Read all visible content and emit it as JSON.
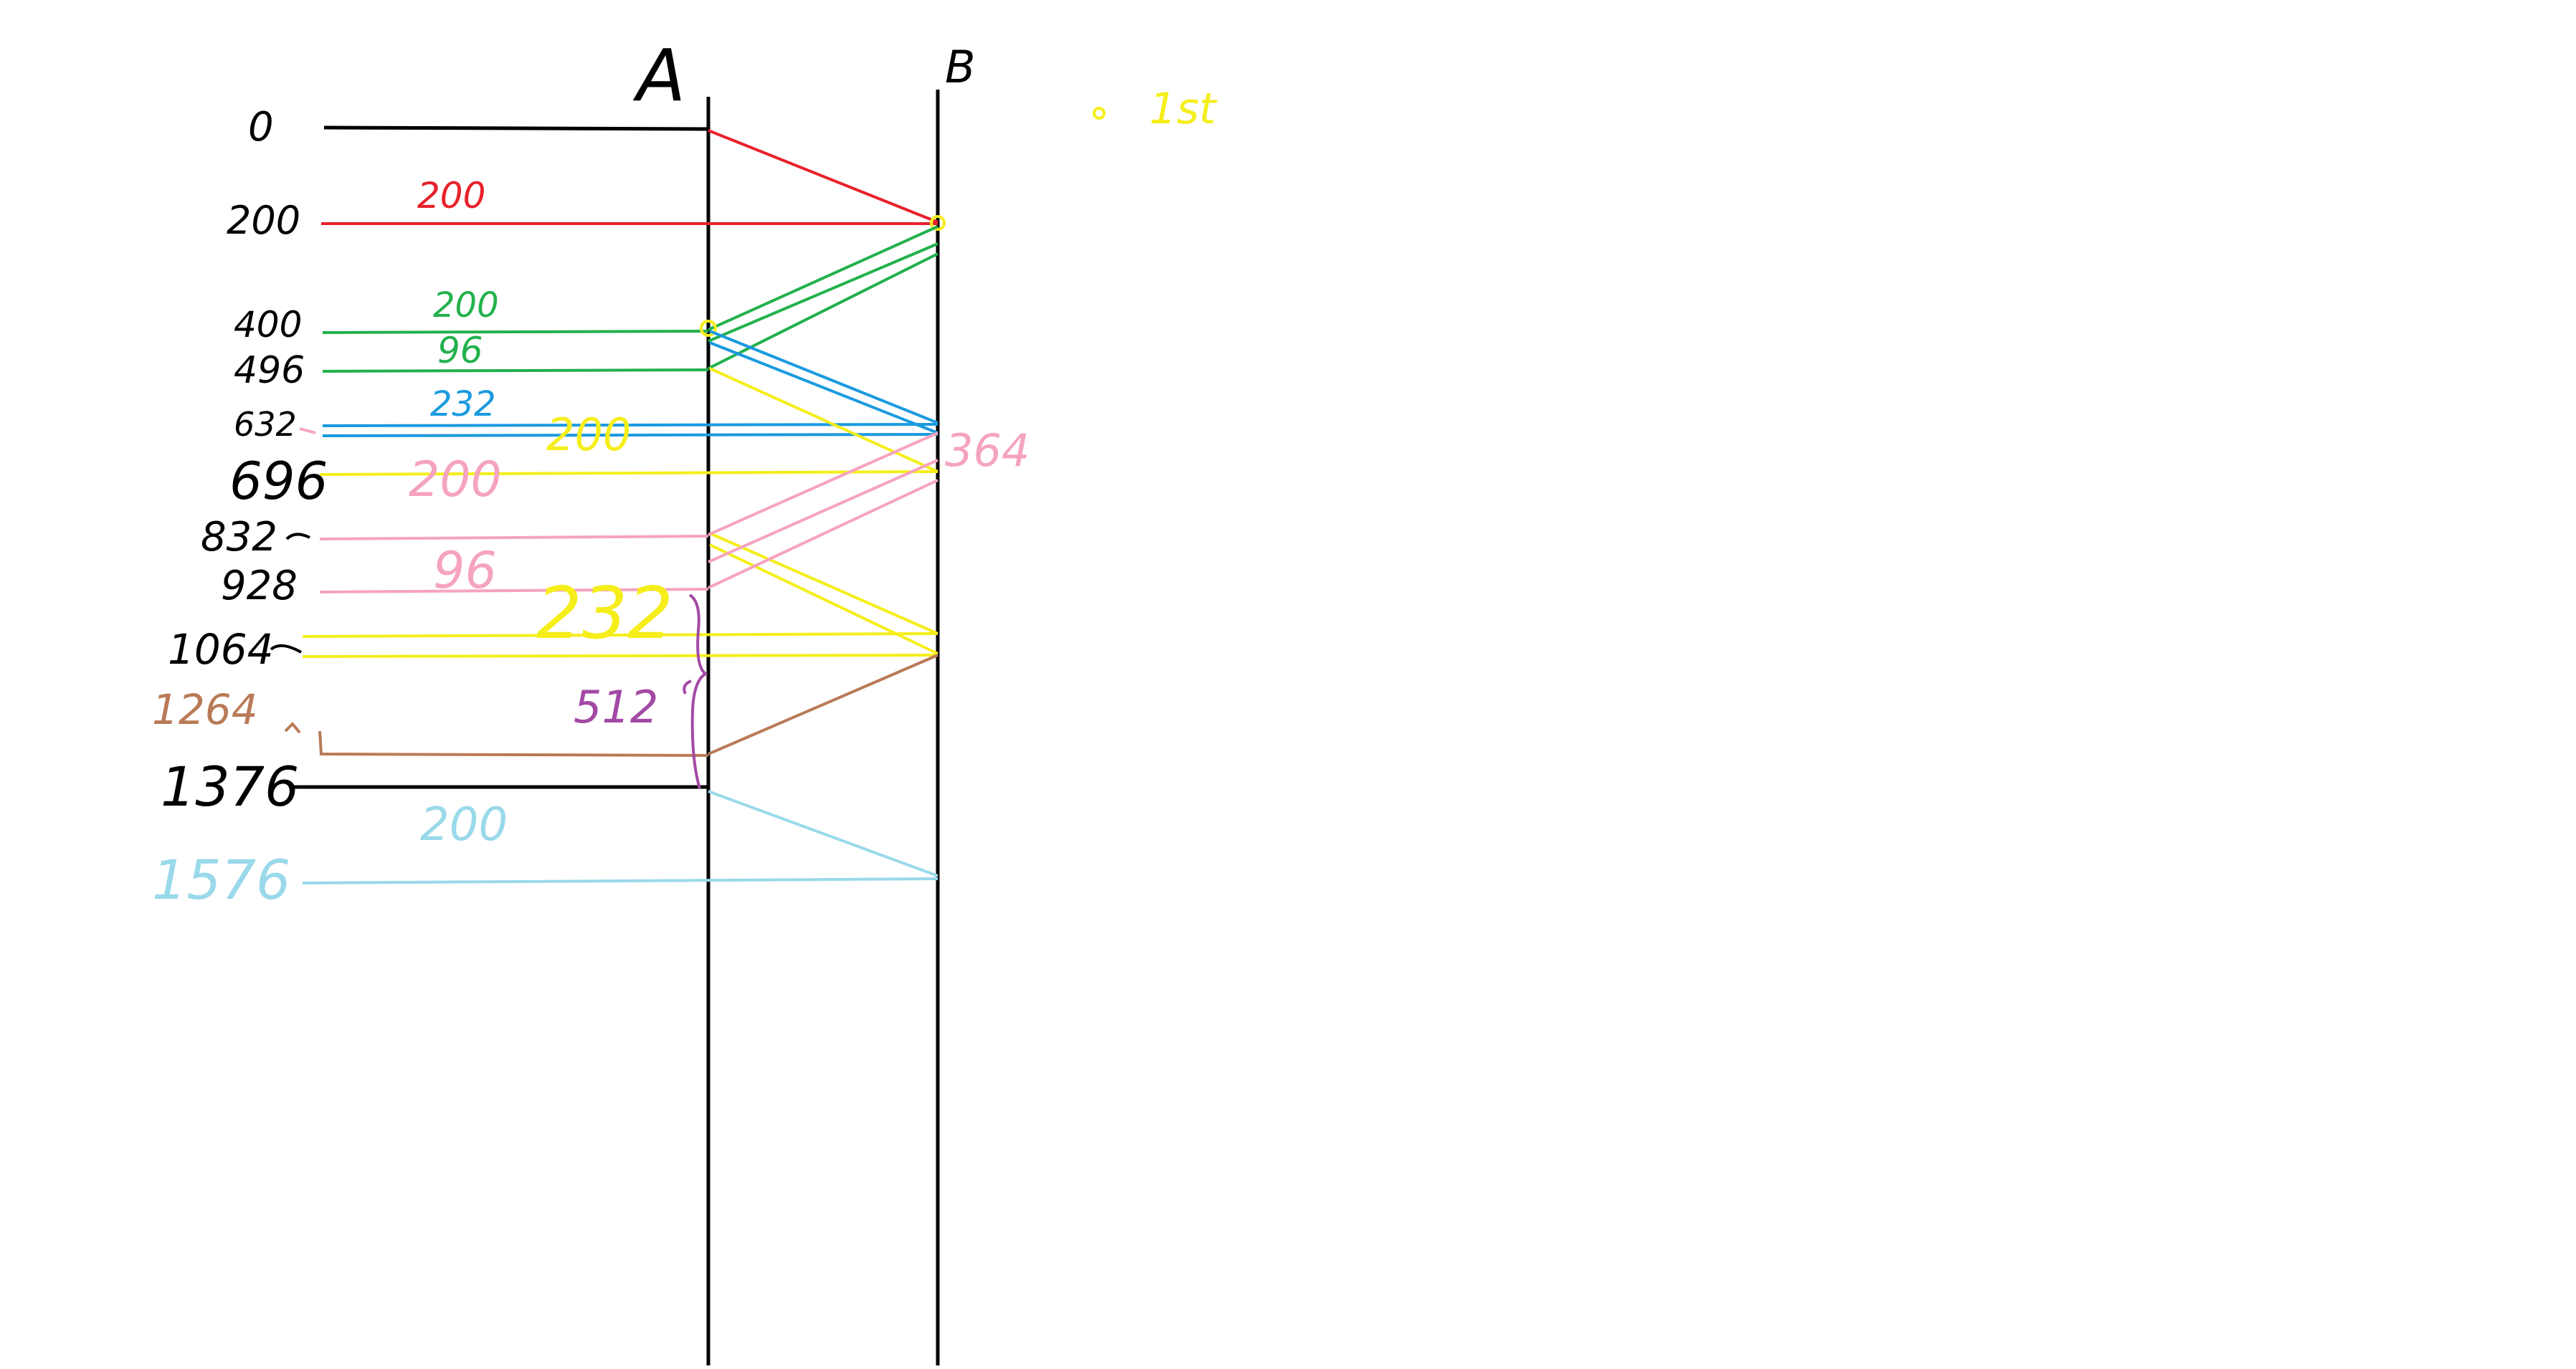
{
  "axes": {
    "a_label": "A",
    "b_label": "B"
  },
  "legend": {
    "marker_color": "#f5ee1a",
    "label": "1st"
  },
  "time_labels": {
    "t0": "0",
    "t200": "200",
    "t400": "400",
    "t496": "496",
    "t632": "632",
    "t696": "696",
    "t832": "832",
    "t928": "928",
    "t1064": "1064",
    "t1264": "1264",
    "t1376": "1376",
    "t1576": "1576"
  },
  "segment_labels": {
    "red_200": "200",
    "green_200": "200",
    "green_96": "96",
    "blue_232": "232",
    "yellow_200": "200",
    "pink_200": "200",
    "pink_96": "96",
    "yellow_232": "232",
    "purple_512": "512",
    "pink_364": "364",
    "skyblue_200": "200"
  },
  "colors": {
    "black": "#000000",
    "red": "#e8212b",
    "green": "#22b14c",
    "blue": "#1a9ae0",
    "yellow": "#f5ee1a",
    "pink": "#f5a3c0",
    "brown": "#b97a57",
    "purple": "#a349a4",
    "skyblue": "#99d9ea"
  }
}
